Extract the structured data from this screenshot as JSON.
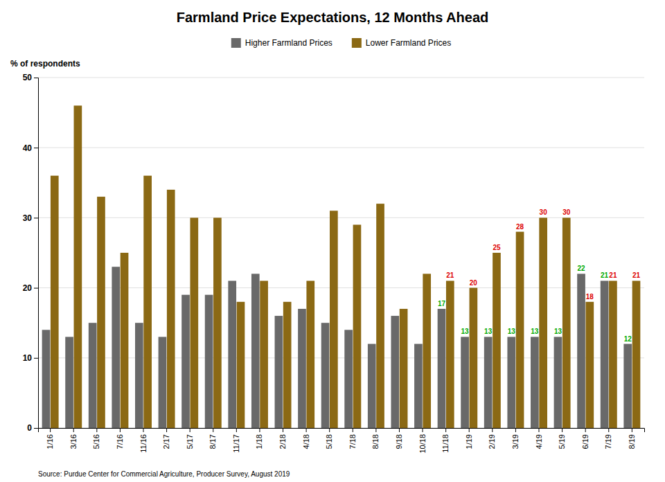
{
  "chart_data": {
    "type": "bar",
    "title": "Farmland Price Expectations, 12 Months Ahead",
    "ylabel": "% of respondents",
    "source": "Source: Purdue Center for Commercial Agriculture, Producer Survey, August 2019",
    "categories": [
      "1/16",
      "3/16",
      "5/16",
      "7/16",
      "11/16",
      "2/17",
      "5/17",
      "8/17",
      "11/17",
      "1/18",
      "2/18",
      "4/18",
      "5/18",
      "7/18",
      "8/18",
      "9/18",
      "10/18",
      "11/18",
      "1/19",
      "2/19",
      "3/19",
      "4/19",
      "5/19",
      "6/19",
      "7/19",
      "8/19"
    ],
    "series": [
      {
        "name": "Higher Farmland Prices",
        "color": "#696969",
        "label_color": "#00aa00",
        "values": [
          14,
          13,
          15,
          23,
          15,
          13,
          19,
          19,
          21,
          22,
          16,
          17,
          15,
          14,
          12,
          16,
          12,
          17,
          13,
          13,
          13,
          13,
          13,
          22,
          21,
          12
        ],
        "value_labels": [
          null,
          null,
          null,
          null,
          null,
          null,
          null,
          null,
          null,
          null,
          null,
          null,
          null,
          null,
          null,
          null,
          null,
          "17",
          "13",
          "13",
          "13",
          "13",
          "13",
          "22",
          "21",
          "12"
        ]
      },
      {
        "name": "Lower Farmland Prices",
        "color": "#8B6914",
        "label_color": "#dd0000",
        "values": [
          36,
          46,
          33,
          25,
          36,
          34,
          30,
          30,
          18,
          21,
          18,
          21,
          31,
          29,
          32,
          17,
          22,
          21,
          20,
          25,
          28,
          30,
          30,
          18,
          21,
          21
        ],
        "value_labels": [
          null,
          null,
          null,
          null,
          null,
          null,
          null,
          null,
          null,
          null,
          null,
          null,
          null,
          null,
          null,
          null,
          null,
          "21",
          "20",
          "25",
          "28",
          "30",
          "30",
          "18",
          "21",
          "21"
        ]
      }
    ],
    "ylim": [
      0,
      50
    ],
    "yticks": [
      0,
      10,
      20,
      30,
      40,
      50
    ],
    "grid": true,
    "legend": "top"
  }
}
